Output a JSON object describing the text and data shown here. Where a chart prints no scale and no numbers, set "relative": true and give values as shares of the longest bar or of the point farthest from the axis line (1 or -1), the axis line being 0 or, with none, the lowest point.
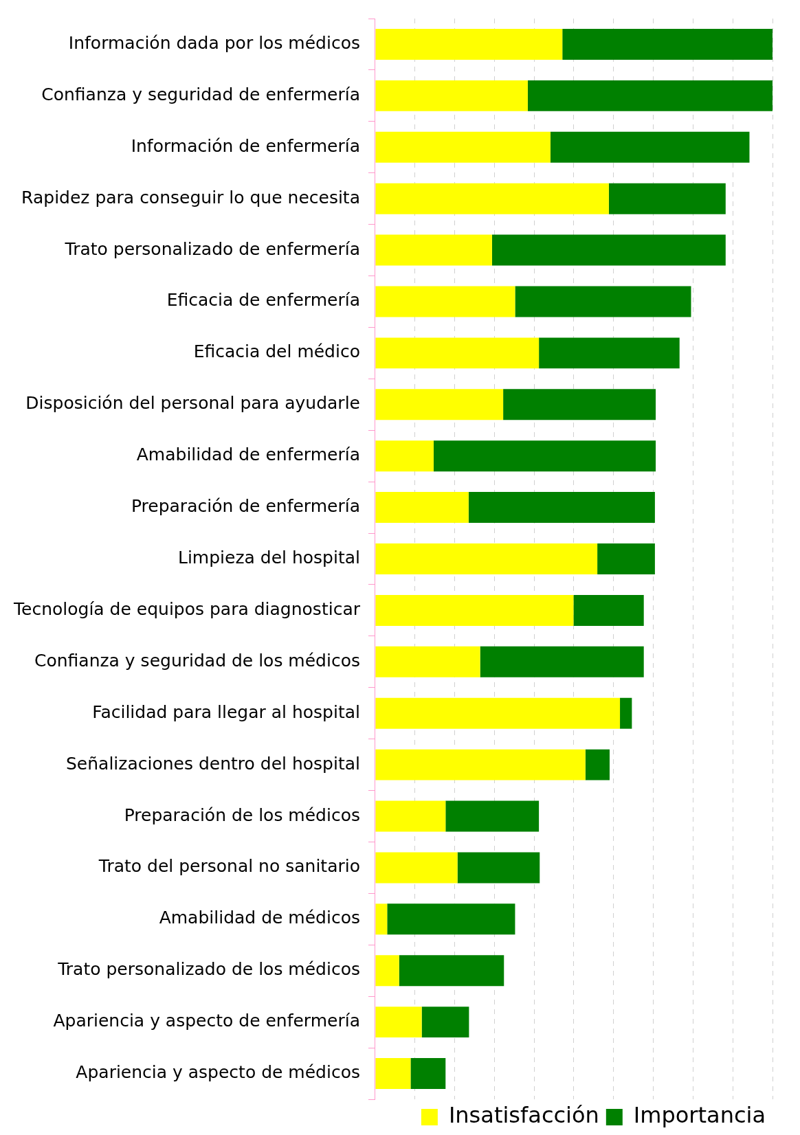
{
  "chart_data": {
    "type": "bar",
    "orientation": "horizontal",
    "stacked": true,
    "relative": true,
    "grid": "x",
    "legend": "bottom right",
    "categories": [
      "Información dada por los médicos",
      "Confianza y seguridad de enfermería",
      "Información de enfermería",
      "Rapidez para conseguir lo que necesita",
      "Trato personalizado de enfermería",
      "Eficacia de enfermería",
      "Eficacia del médico",
      "Disposición del personal para ayudarle",
      "Amabilidad de enfermería",
      "Preparación de enfermería",
      "Limpieza del hospital",
      "Tecnología de equipos para diagnosticar",
      "Confianza y seguridad de los médicos",
      "Facilidad para llegar al hospital",
      "Señalizaciones dentro del hospital",
      "Preparación de los médicos",
      "Trato del personal no sanitario",
      "Amabilidad de médicos",
      "Trato personalizado de los médicos",
      "Apariencia y aspecto de enfermería",
      "Apariencia y aspecto de médicos"
    ],
    "series": [
      {
        "name": "Insatisfacción",
        "color": "#ffff00",
        "values": [
          0.471,
          0.384,
          0.441,
          0.588,
          0.294,
          0.352,
          0.412,
          0.322,
          0.147,
          0.235,
          0.559,
          0.499,
          0.264,
          0.616,
          0.529,
          0.177,
          0.207,
          0.03,
          0.06,
          0.117,
          0.089
        ]
      },
      {
        "name": "Importancia",
        "color": "#008000",
        "values": [
          0.529,
          0.616,
          0.501,
          0.294,
          0.588,
          0.443,
          0.354,
          0.384,
          0.559,
          0.469,
          0.145,
          0.177,
          0.412,
          0.03,
          0.061,
          0.235,
          0.207,
          0.322,
          0.264,
          0.119,
          0.088
        ]
      }
    ]
  }
}
